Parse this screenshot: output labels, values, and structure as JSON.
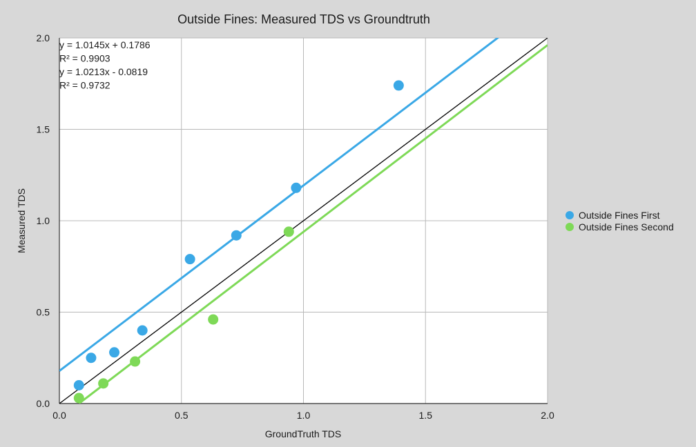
{
  "chart_data": {
    "type": "scatter",
    "title": "Outside Fines: Measured TDS vs Groundtruth",
    "xlabel": "GroundTruth TDS",
    "ylabel": "Measured TDS",
    "xlim": [
      0,
      2.0
    ],
    "ylim": [
      0,
      2.0
    ],
    "x_ticks": [
      "0.0",
      "0.5",
      "1.0",
      "1.5",
      "2.0"
    ],
    "y_ticks": [
      "0.0",
      "0.5",
      "1.0",
      "1.5",
      "2.0"
    ],
    "grid": true,
    "legend_position": "right",
    "equations": [
      "y = 1.0145x + 0.1786",
      "R² = 0.9903",
      "y = 1.0213x - 0.0819",
      "R² = 0.9732"
    ],
    "series": [
      {
        "name": "Outside Fines First",
        "color": "#3aa8e6",
        "points": [
          {
            "x": 0.08,
            "y": 0.1
          },
          {
            "x": 0.13,
            "y": 0.25
          },
          {
            "x": 0.225,
            "y": 0.28
          },
          {
            "x": 0.34,
            "y": 0.4
          },
          {
            "x": 0.535,
            "y": 0.79
          },
          {
            "x": 0.725,
            "y": 0.92
          },
          {
            "x": 0.97,
            "y": 1.18
          },
          {
            "x": 1.39,
            "y": 1.74
          }
        ],
        "trendline": {
          "slope": 1.0145,
          "intercept": 0.1786
        }
      },
      {
        "name": "Outside Fines Second",
        "color": "#7ed957",
        "points": [
          {
            "x": 0.08,
            "y": 0.03
          },
          {
            "x": 0.18,
            "y": 0.11
          },
          {
            "x": 0.31,
            "y": 0.23
          },
          {
            "x": 0.63,
            "y": 0.46
          },
          {
            "x": 0.94,
            "y": 0.94
          }
        ],
        "trendline": {
          "slope": 1.0213,
          "intercept": -0.0819
        }
      }
    ],
    "reference_line": {
      "slope": 1,
      "intercept": 0,
      "color": "#000000"
    }
  }
}
